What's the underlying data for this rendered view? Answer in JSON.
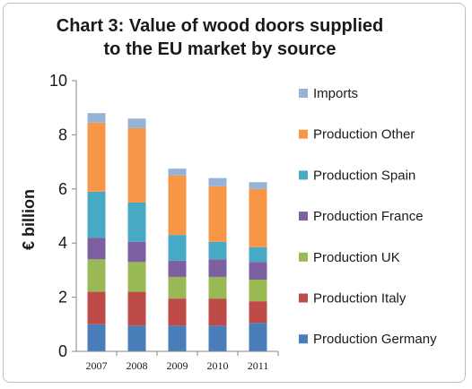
{
  "chart_data": {
    "type": "bar",
    "stacked": true,
    "title_line1": "Chart 3: Value of wood doors supplied",
    "title_line2": "to the EU market by source",
    "ylabel": "€ billion",
    "xlabel": "",
    "ylim": [
      0,
      10
    ],
    "yticks": [
      0,
      2,
      4,
      6,
      8,
      10
    ],
    "grid": false,
    "legend_position": "right",
    "categories": [
      "2007",
      "2008",
      "2009",
      "2010",
      "2011"
    ],
    "series": [
      {
        "name": "Production Germany",
        "color": "#4a7ebb",
        "values": [
          1.0,
          0.95,
          0.95,
          0.95,
          1.05
        ]
      },
      {
        "name": "Production Italy",
        "color": "#be4b48",
        "values": [
          1.2,
          1.25,
          1.0,
          1.0,
          0.8
        ]
      },
      {
        "name": "Production UK",
        "color": "#98b954",
        "values": [
          1.2,
          1.1,
          0.8,
          0.8,
          0.8
        ]
      },
      {
        "name": "Production France",
        "color": "#7d60a0",
        "values": [
          0.8,
          0.75,
          0.6,
          0.65,
          0.65
        ]
      },
      {
        "name": "Production Spain",
        "color": "#46aac5",
        "values": [
          1.7,
          1.45,
          0.95,
          0.65,
          0.55
        ]
      },
      {
        "name": "Production Other",
        "color": "#f79646",
        "values": [
          2.55,
          2.75,
          2.2,
          2.05,
          2.15
        ]
      },
      {
        "name": "Imports",
        "color": "#95b3d7",
        "values": [
          0.35,
          0.35,
          0.25,
          0.3,
          0.25
        ]
      }
    ]
  }
}
